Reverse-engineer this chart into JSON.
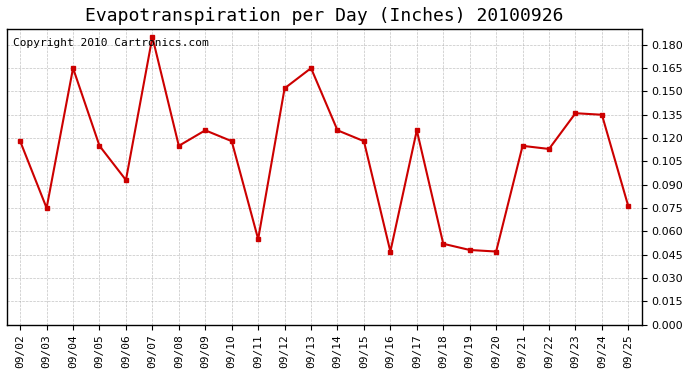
{
  "title": "Evapotranspiration per Day (Inches) 20100926",
  "copyright_text": "Copyright 2010 Cartronics.com",
  "dates": [
    "09/02",
    "09/03",
    "09/04",
    "09/05",
    "09/06",
    "09/07",
    "09/08",
    "09/09",
    "09/10",
    "09/11",
    "09/12",
    "09/13",
    "09/14",
    "09/15",
    "09/16",
    "09/17",
    "09/18",
    "09/19",
    "09/20",
    "09/21",
    "09/22",
    "09/23",
    "09/24",
    "09/25"
  ],
  "values": [
    0.118,
    0.075,
    0.165,
    0.115,
    0.093,
    0.185,
    0.115,
    0.125,
    0.118,
    0.055,
    0.152,
    0.165,
    0.125,
    0.118,
    0.047,
    0.125,
    0.052,
    0.048,
    0.047,
    0.115,
    0.113,
    0.136,
    0.135,
    0.076
  ],
  "line_color": "#cc0000",
  "marker": "s",
  "marker_size": 3,
  "ylim": [
    0.0,
    0.19
  ],
  "yticks": [
    0.0,
    0.015,
    0.03,
    0.045,
    0.06,
    0.075,
    0.09,
    0.105,
    0.12,
    0.135,
    0.15,
    0.165,
    0.18
  ],
  "background_color": "#ffffff",
  "grid_color": "#aaaaaa",
  "title_fontsize": 13,
  "copyright_fontsize": 8,
  "tick_fontsize": 8
}
